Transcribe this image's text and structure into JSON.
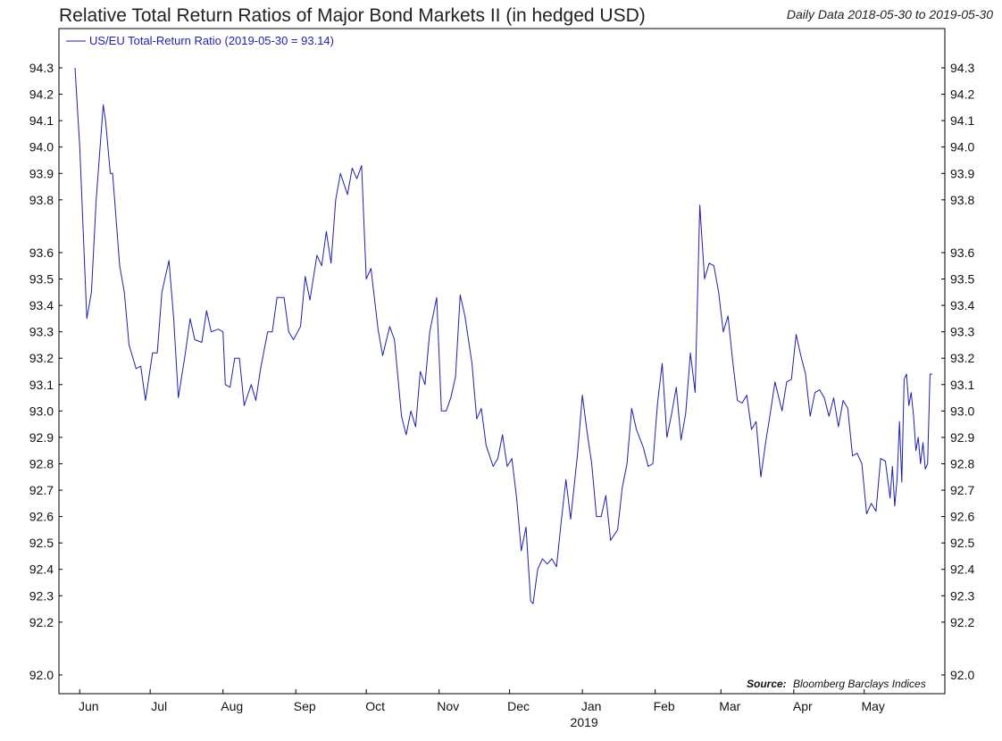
{
  "title": "Relative Total Return Ratios of Major Bond Markets II (in hedged USD)",
  "subtitle": "Daily Data 2018-05-30 to 2019-05-30",
  "source_label": "Source:",
  "source_text": "Bloomberg Barclays Indices",
  "colors": {
    "line": "#1f1fa8",
    "frame": "#000000",
    "background": "#ffffff"
  },
  "chart_data": {
    "type": "line",
    "title": "Relative Total Return Ratios of Major Bond Markets II (in hedged USD)",
    "xlabel": "",
    "ylabel": "",
    "ylim": [
      92.0,
      94.3
    ],
    "y_ticks": [
      92.0,
      92.2,
      92.3,
      92.4,
      92.5,
      92.6,
      92.7,
      92.8,
      92.9,
      93.0,
      93.1,
      93.2,
      93.3,
      93.4,
      93.5,
      93.6,
      93.8,
      93.9,
      94.0,
      94.1,
      94.2,
      94.3
    ],
    "x_range": [
      "2018-05-30",
      "2019-05-30"
    ],
    "x_ticks": [
      {
        "date": "2018-06-01",
        "label": "Jun"
      },
      {
        "date": "2018-07-01",
        "label": "Jul"
      },
      {
        "date": "2018-08-01",
        "label": "Aug"
      },
      {
        "date": "2018-09-01",
        "label": "Sep"
      },
      {
        "date": "2018-10-01",
        "label": "Oct"
      },
      {
        "date": "2018-11-01",
        "label": "Nov"
      },
      {
        "date": "2018-12-01",
        "label": "Dec"
      },
      {
        "date": "2019-01-01",
        "label": "Jan"
      },
      {
        "date": "2019-02-01",
        "label": "Feb"
      },
      {
        "date": "2019-03-01",
        "label": "Mar"
      },
      {
        "date": "2019-04-01",
        "label": "Apr"
      },
      {
        "date": "2019-05-01",
        "label": "May"
      }
    ],
    "year_label": {
      "date": "2019-01-01",
      "label": "2019"
    },
    "grid": false,
    "legend_position": "top-left",
    "series": [
      {
        "name": "US/EU Total-Return Ratio (2019-05-30 = 93.14)",
        "points": [
          [
            "2018-05-30",
            94.3
          ],
          [
            "2018-06-01",
            94.0
          ],
          [
            "2018-06-04",
            93.35
          ],
          [
            "2018-06-06",
            93.45
          ],
          [
            "2018-06-08",
            93.8
          ],
          [
            "2018-06-11",
            94.16
          ],
          [
            "2018-06-12",
            94.1
          ],
          [
            "2018-06-14",
            93.9
          ],
          [
            "2018-06-15",
            93.9
          ],
          [
            "2018-06-18",
            93.55
          ],
          [
            "2018-06-20",
            93.45
          ],
          [
            "2018-06-22",
            93.25
          ],
          [
            "2018-06-25",
            93.16
          ],
          [
            "2018-06-27",
            93.17
          ],
          [
            "2018-06-29",
            93.04
          ],
          [
            "2018-07-02",
            93.22
          ],
          [
            "2018-07-04",
            93.22
          ],
          [
            "2018-07-06",
            93.45
          ],
          [
            "2018-07-09",
            93.57
          ],
          [
            "2018-07-11",
            93.35
          ],
          [
            "2018-07-13",
            93.05
          ],
          [
            "2018-07-16",
            93.22
          ],
          [
            "2018-07-18",
            93.35
          ],
          [
            "2018-07-20",
            93.27
          ],
          [
            "2018-07-23",
            93.26
          ],
          [
            "2018-07-25",
            93.38
          ],
          [
            "2018-07-27",
            93.3
          ],
          [
            "2018-07-30",
            93.31
          ],
          [
            "2018-08-01",
            93.3
          ],
          [
            "2018-08-02",
            93.1
          ],
          [
            "2018-08-04",
            93.09
          ],
          [
            "2018-08-06",
            93.2
          ],
          [
            "2018-08-08",
            93.2
          ],
          [
            "2018-08-10",
            93.02
          ],
          [
            "2018-08-13",
            93.1
          ],
          [
            "2018-08-15",
            93.04
          ],
          [
            "2018-08-17",
            93.16
          ],
          [
            "2018-08-20",
            93.3
          ],
          [
            "2018-08-22",
            93.3
          ],
          [
            "2018-08-24",
            93.43
          ],
          [
            "2018-08-27",
            93.43
          ],
          [
            "2018-08-29",
            93.3
          ],
          [
            "2018-08-31",
            93.27
          ],
          [
            "2018-09-03",
            93.32
          ],
          [
            "2018-09-05",
            93.51
          ],
          [
            "2018-09-07",
            93.42
          ],
          [
            "2018-09-10",
            93.59
          ],
          [
            "2018-09-12",
            93.55
          ],
          [
            "2018-09-14",
            93.68
          ],
          [
            "2018-09-16",
            93.56
          ],
          [
            "2018-09-18",
            93.8
          ],
          [
            "2018-09-20",
            93.9
          ],
          [
            "2018-09-23",
            93.82
          ],
          [
            "2018-09-25",
            93.92
          ],
          [
            "2018-09-27",
            93.88
          ],
          [
            "2018-09-29",
            93.93
          ],
          [
            "2018-10-01",
            93.5
          ],
          [
            "2018-10-03",
            93.54
          ],
          [
            "2018-10-06",
            93.31
          ],
          [
            "2018-10-08",
            93.21
          ],
          [
            "2018-10-11",
            93.32
          ],
          [
            "2018-10-13",
            93.27
          ],
          [
            "2018-10-16",
            92.98
          ],
          [
            "2018-10-18",
            92.91
          ],
          [
            "2018-10-20",
            93.0
          ],
          [
            "2018-10-22",
            92.94
          ],
          [
            "2018-10-24",
            93.15
          ],
          [
            "2018-10-26",
            93.1
          ],
          [
            "2018-10-28",
            93.3
          ],
          [
            "2018-10-31",
            93.43
          ],
          [
            "2018-11-02",
            93.0
          ],
          [
            "2018-11-04",
            93.0
          ],
          [
            "2018-11-06",
            93.05
          ],
          [
            "2018-11-08",
            93.13
          ],
          [
            "2018-11-10",
            93.44
          ],
          [
            "2018-11-12",
            93.36
          ],
          [
            "2018-11-15",
            93.18
          ],
          [
            "2018-11-17",
            92.97
          ],
          [
            "2018-11-19",
            93.01
          ],
          [
            "2018-11-21",
            92.87
          ],
          [
            "2018-11-24",
            92.79
          ],
          [
            "2018-11-26",
            92.82
          ],
          [
            "2018-11-28",
            92.91
          ],
          [
            "2018-11-30",
            92.79
          ],
          [
            "2018-12-02",
            92.82
          ],
          [
            "2018-12-04",
            92.67
          ],
          [
            "2018-12-06",
            92.47
          ],
          [
            "2018-12-08",
            92.56
          ],
          [
            "2018-12-10",
            92.28
          ],
          [
            "2018-12-11",
            92.27
          ],
          [
            "2018-12-13",
            92.4
          ],
          [
            "2018-12-15",
            92.44
          ],
          [
            "2018-12-17",
            92.42
          ],
          [
            "2018-12-19",
            92.44
          ],
          [
            "2018-12-21",
            92.41
          ],
          [
            "2018-12-23",
            92.58
          ],
          [
            "2018-12-25",
            92.74
          ],
          [
            "2018-12-27",
            92.59
          ],
          [
            "2018-12-30",
            92.84
          ],
          [
            "2019-01-01",
            93.06
          ],
          [
            "2019-01-03",
            92.92
          ],
          [
            "2019-01-05",
            92.8
          ],
          [
            "2019-01-07",
            92.6
          ],
          [
            "2019-01-09",
            92.6
          ],
          [
            "2019-01-11",
            92.68
          ],
          [
            "2019-01-13",
            92.51
          ],
          [
            "2019-01-16",
            92.55
          ],
          [
            "2019-01-18",
            92.71
          ],
          [
            "2019-01-20",
            92.8
          ],
          [
            "2019-01-22",
            93.01
          ],
          [
            "2019-01-24",
            92.93
          ],
          [
            "2019-01-27",
            92.86
          ],
          [
            "2019-01-29",
            92.79
          ],
          [
            "2019-01-31",
            92.8
          ],
          [
            "2019-02-02",
            93.03
          ],
          [
            "2019-02-04",
            93.18
          ],
          [
            "2019-02-06",
            92.9
          ],
          [
            "2019-02-08",
            92.99
          ],
          [
            "2019-02-10",
            93.09
          ],
          [
            "2019-02-12",
            92.89
          ],
          [
            "2019-02-14",
            92.99
          ],
          [
            "2019-02-16",
            93.22
          ],
          [
            "2019-02-18",
            93.07
          ],
          [
            "2019-02-20",
            93.78
          ],
          [
            "2019-02-22",
            93.5
          ],
          [
            "2019-02-24",
            93.56
          ],
          [
            "2019-02-26",
            93.55
          ],
          [
            "2019-02-28",
            93.45
          ],
          [
            "2019-03-02",
            93.3
          ],
          [
            "2019-03-04",
            93.36
          ],
          [
            "2019-03-06",
            93.19
          ],
          [
            "2019-03-08",
            93.04
          ],
          [
            "2019-03-10",
            93.03
          ],
          [
            "2019-03-12",
            93.06
          ],
          [
            "2019-03-14",
            92.93
          ],
          [
            "2019-03-16",
            92.96
          ],
          [
            "2019-03-18",
            92.75
          ],
          [
            "2019-03-20",
            92.88
          ],
          [
            "2019-03-22",
            92.99
          ],
          [
            "2019-03-24",
            93.11
          ],
          [
            "2019-03-27",
            93.0
          ],
          [
            "2019-03-29",
            93.11
          ],
          [
            "2019-03-31",
            93.12
          ],
          [
            "2019-04-02",
            93.29
          ],
          [
            "2019-04-04",
            93.21
          ],
          [
            "2019-04-06",
            93.14
          ],
          [
            "2019-04-08",
            92.98
          ],
          [
            "2019-04-10",
            93.07
          ],
          [
            "2019-04-12",
            93.08
          ],
          [
            "2019-04-14",
            93.05
          ],
          [
            "2019-04-16",
            92.98
          ],
          [
            "2019-04-18",
            93.05
          ],
          [
            "2019-04-20",
            92.94
          ],
          [
            "2019-04-22",
            93.04
          ],
          [
            "2019-04-24",
            93.01
          ],
          [
            "2019-04-26",
            92.83
          ],
          [
            "2019-04-28",
            92.84
          ],
          [
            "2019-04-30",
            92.8
          ],
          [
            "2019-05-02",
            92.61
          ],
          [
            "2019-05-04",
            92.65
          ],
          [
            "2019-05-06",
            92.62
          ],
          [
            "2019-05-08",
            92.82
          ],
          [
            "2019-05-10",
            92.81
          ],
          [
            "2019-05-12",
            92.67
          ],
          [
            "2019-05-13",
            92.79
          ],
          [
            "2019-05-14",
            92.64
          ],
          [
            "2019-05-15",
            92.74
          ],
          [
            "2019-05-16",
            92.96
          ],
          [
            "2019-05-17",
            92.73
          ],
          [
            "2019-05-18",
            93.12
          ],
          [
            "2019-05-19",
            93.14
          ],
          [
            "2019-05-20",
            93.02
          ],
          [
            "2019-05-21",
            93.07
          ],
          [
            "2019-05-22",
            92.98
          ],
          [
            "2019-05-23",
            92.85
          ],
          [
            "2019-05-24",
            92.9
          ],
          [
            "2019-05-25",
            92.8
          ],
          [
            "2019-05-26",
            92.88
          ],
          [
            "2019-05-27",
            92.78
          ],
          [
            "2019-05-28",
            92.8
          ],
          [
            "2019-05-29",
            93.14
          ],
          [
            "2019-05-30",
            93.14
          ]
        ]
      }
    ]
  }
}
